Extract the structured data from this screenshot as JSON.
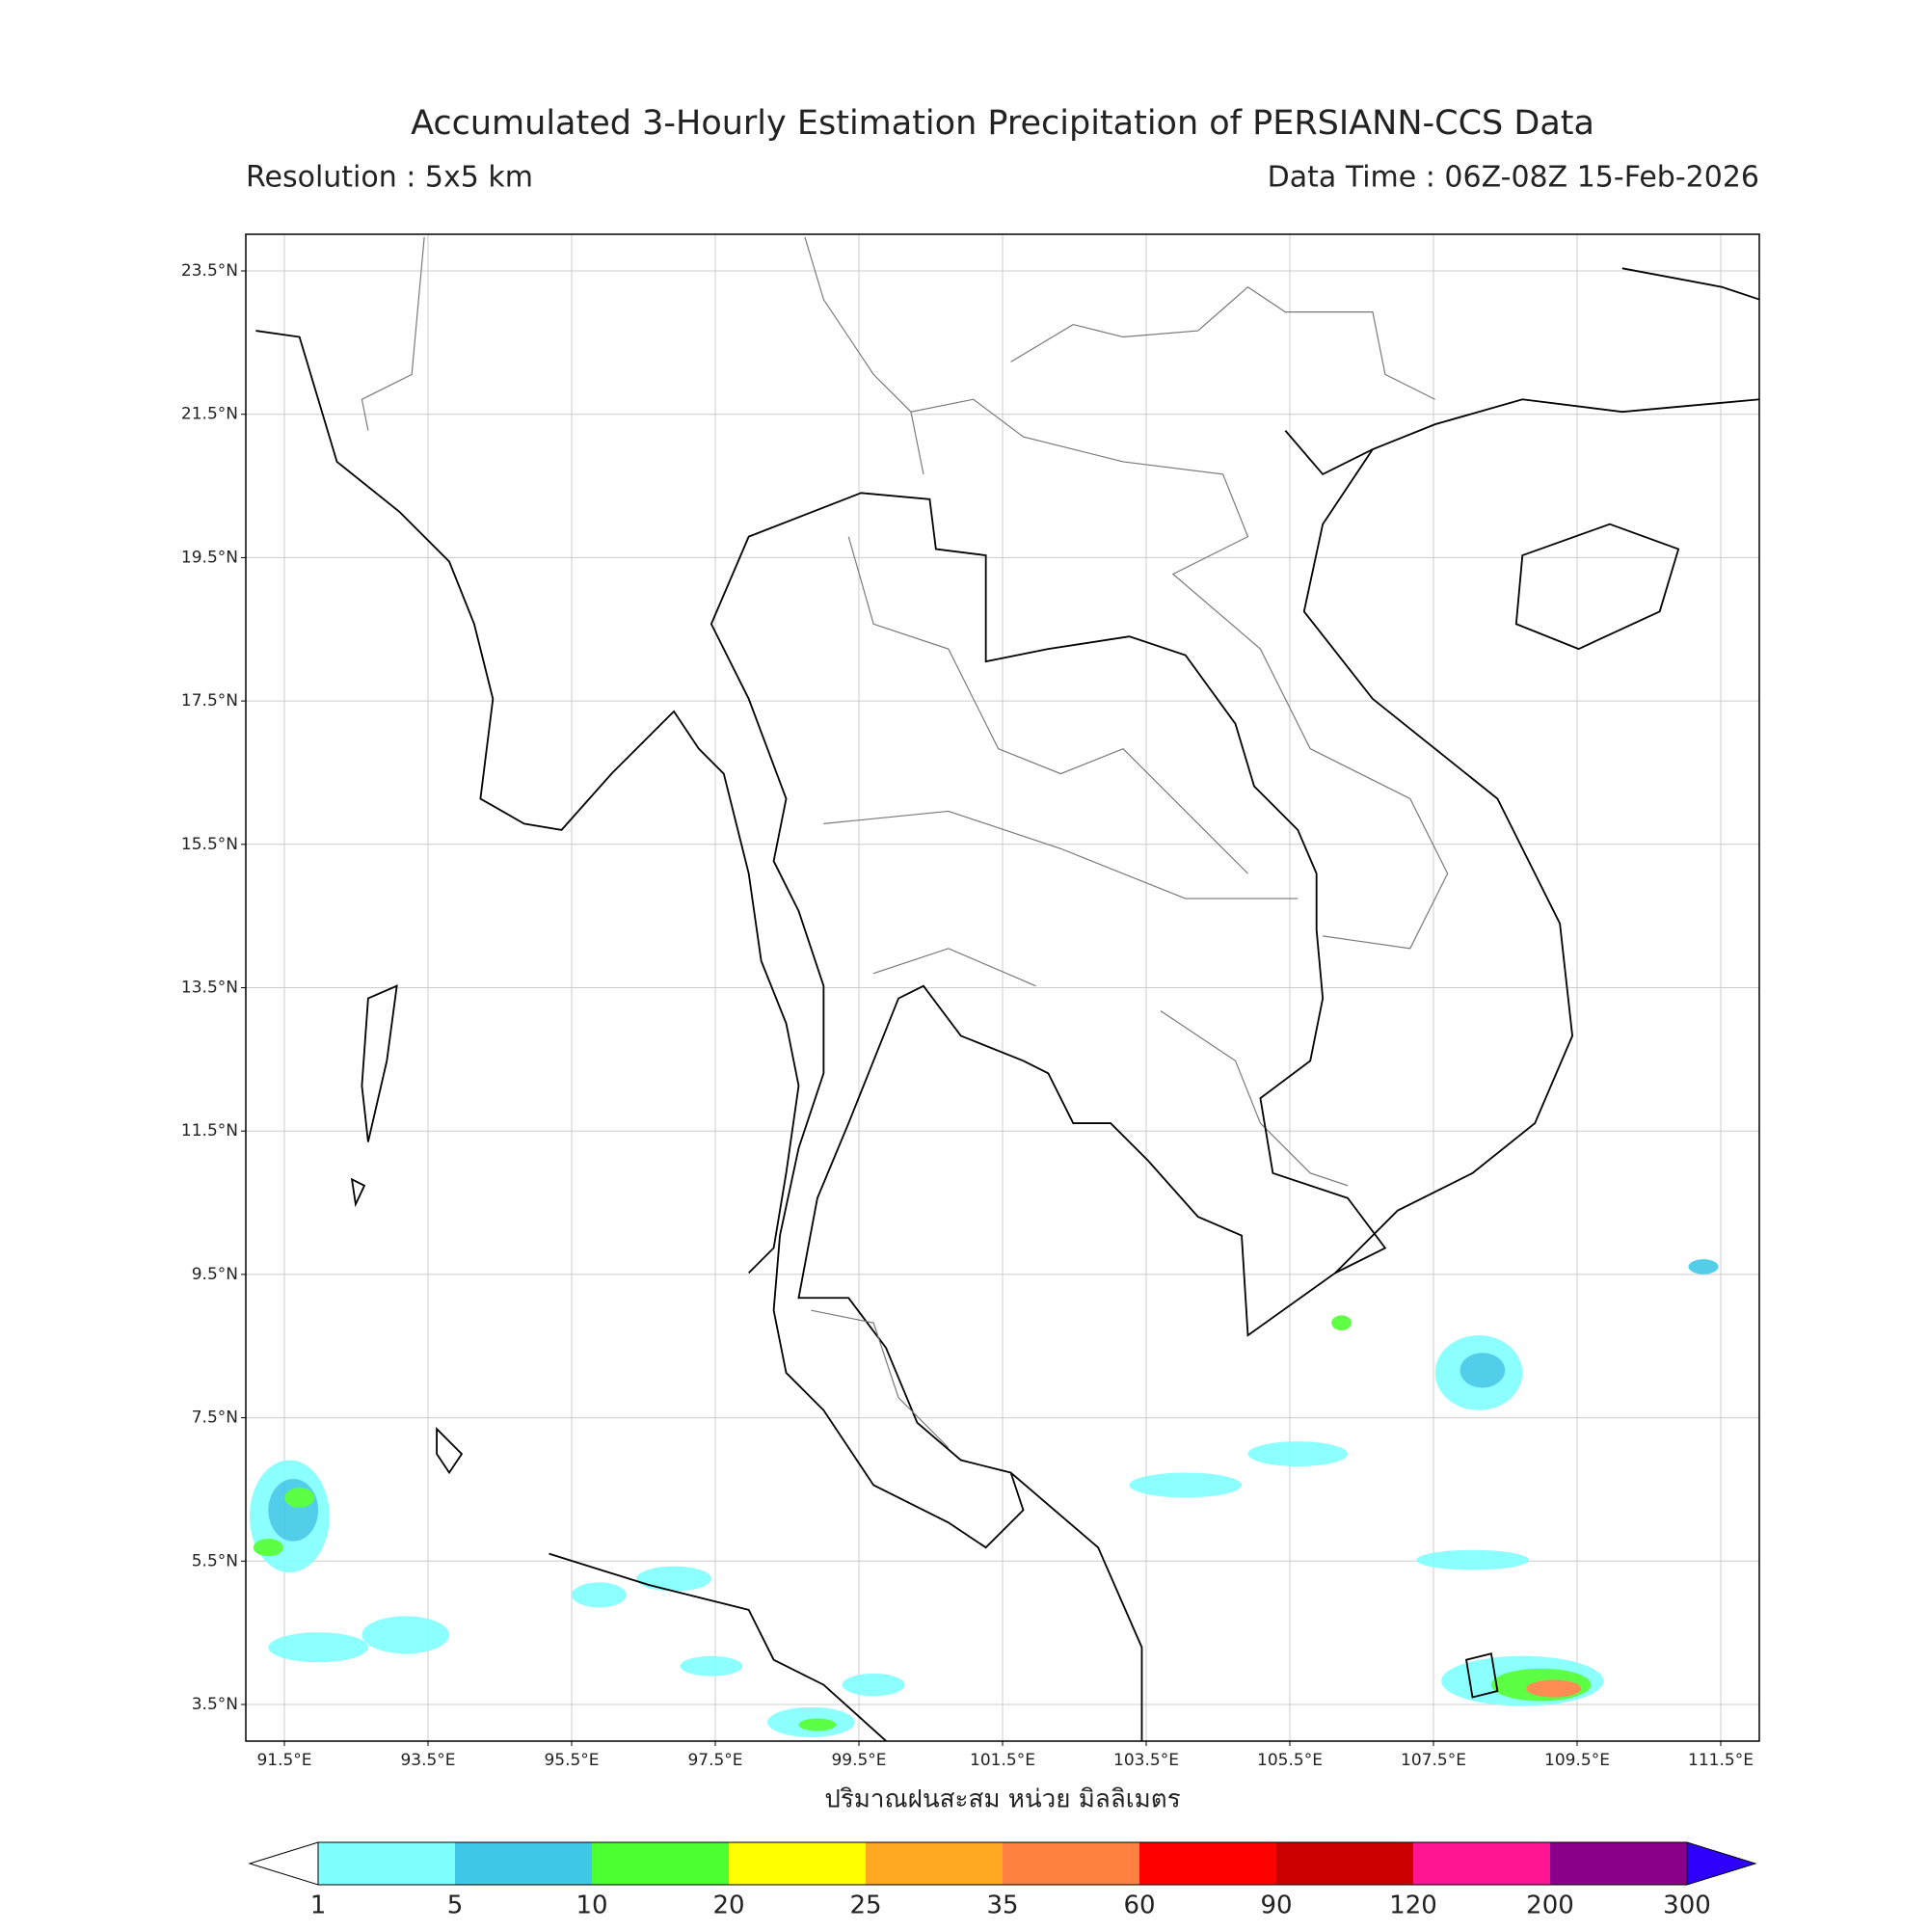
{
  "header": {
    "title": "Accumulated 3-Hourly Estimation Precipitation of PERSIANN-CCS Data",
    "resolution": "Resolution : 5x5 km",
    "data_time": "Data Time : 06Z-08Z 15-Feb-2026"
  },
  "map": {
    "lat_ticks": [
      "23.5°N",
      "21.5°N",
      "19.5°N",
      "17.5°N",
      "15.5°N",
      "13.5°N",
      "11.5°N",
      "9.5°N",
      "7.5°N",
      "5.5°N",
      "3.5°N"
    ],
    "lon_ticks": [
      "91.5°E",
      "93.5°E",
      "95.5°E",
      "97.5°E",
      "99.5°E",
      "101.5°E",
      "103.5°E",
      "105.5°E",
      "107.5°E",
      "109.5°E",
      "111.5°E"
    ],
    "xlabel": "ปริมาณฝนสะสม หน่วย มิลลิเมตร"
  },
  "colorbar": {
    "ticks": [
      "1",
      "5",
      "10",
      "20",
      "25",
      "35",
      "60",
      "90",
      "120",
      "200",
      "300"
    ],
    "colors": [
      "#80ffff",
      "#40c8e8",
      "#4cff30",
      "#ffff00",
      "#ffa820",
      "#ff8040",
      "#ff0000",
      "#cc0000",
      "#ff1493",
      "#8b008b"
    ],
    "under_color": "#ffffff",
    "over_color": "#3000ff"
  }
}
